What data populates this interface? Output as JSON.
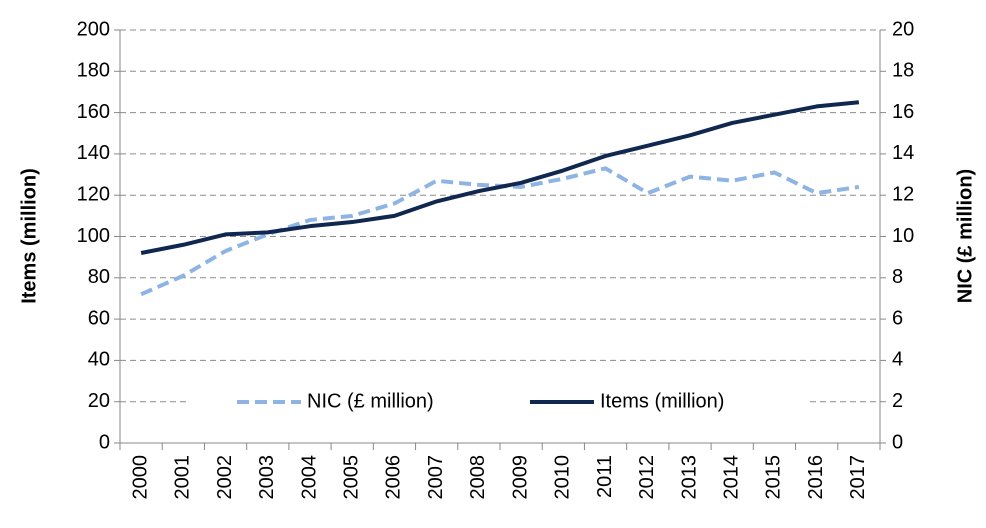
{
  "chart_data": {
    "type": "line",
    "categories": [
      "2000",
      "2001",
      "2002",
      "2003",
      "2004",
      "2005",
      "2006",
      "2007",
      "2008",
      "2009",
      "2010",
      "2011",
      "2012",
      "2013",
      "2014",
      "2015",
      "2016",
      "2017"
    ],
    "series": [
      {
        "name": "NIC (£ million)",
        "color": "#8db4e2",
        "axis": "y2",
        "dashed": true,
        "values": [
          7.2,
          8.1,
          9.3,
          10.1,
          10.8,
          11.0,
          11.6,
          12.7,
          12.5,
          12.4,
          12.8,
          13.3,
          12.1,
          12.9,
          12.7,
          13.1,
          12.1,
          12.4
        ]
      },
      {
        "name": "Items (million)",
        "color": "#10284f",
        "values": [
          92,
          96,
          101,
          102,
          105,
          107,
          110,
          117,
          122,
          126,
          132,
          139,
          144,
          149,
          155,
          159,
          163,
          165
        ]
      }
    ],
    "ylabel": "Items (million)",
    "y2label": "NIC (£ million)",
    "ylim": [
      0,
      200
    ],
    "yticks": [
      0,
      20,
      40,
      60,
      80,
      100,
      120,
      140,
      160,
      180,
      200
    ],
    "y2lim": [
      0,
      20
    ],
    "y2ticks": [
      0,
      2,
      4,
      6,
      8,
      10,
      12,
      14,
      16,
      18,
      20
    ],
    "grid": true,
    "legend": "bottom"
  }
}
